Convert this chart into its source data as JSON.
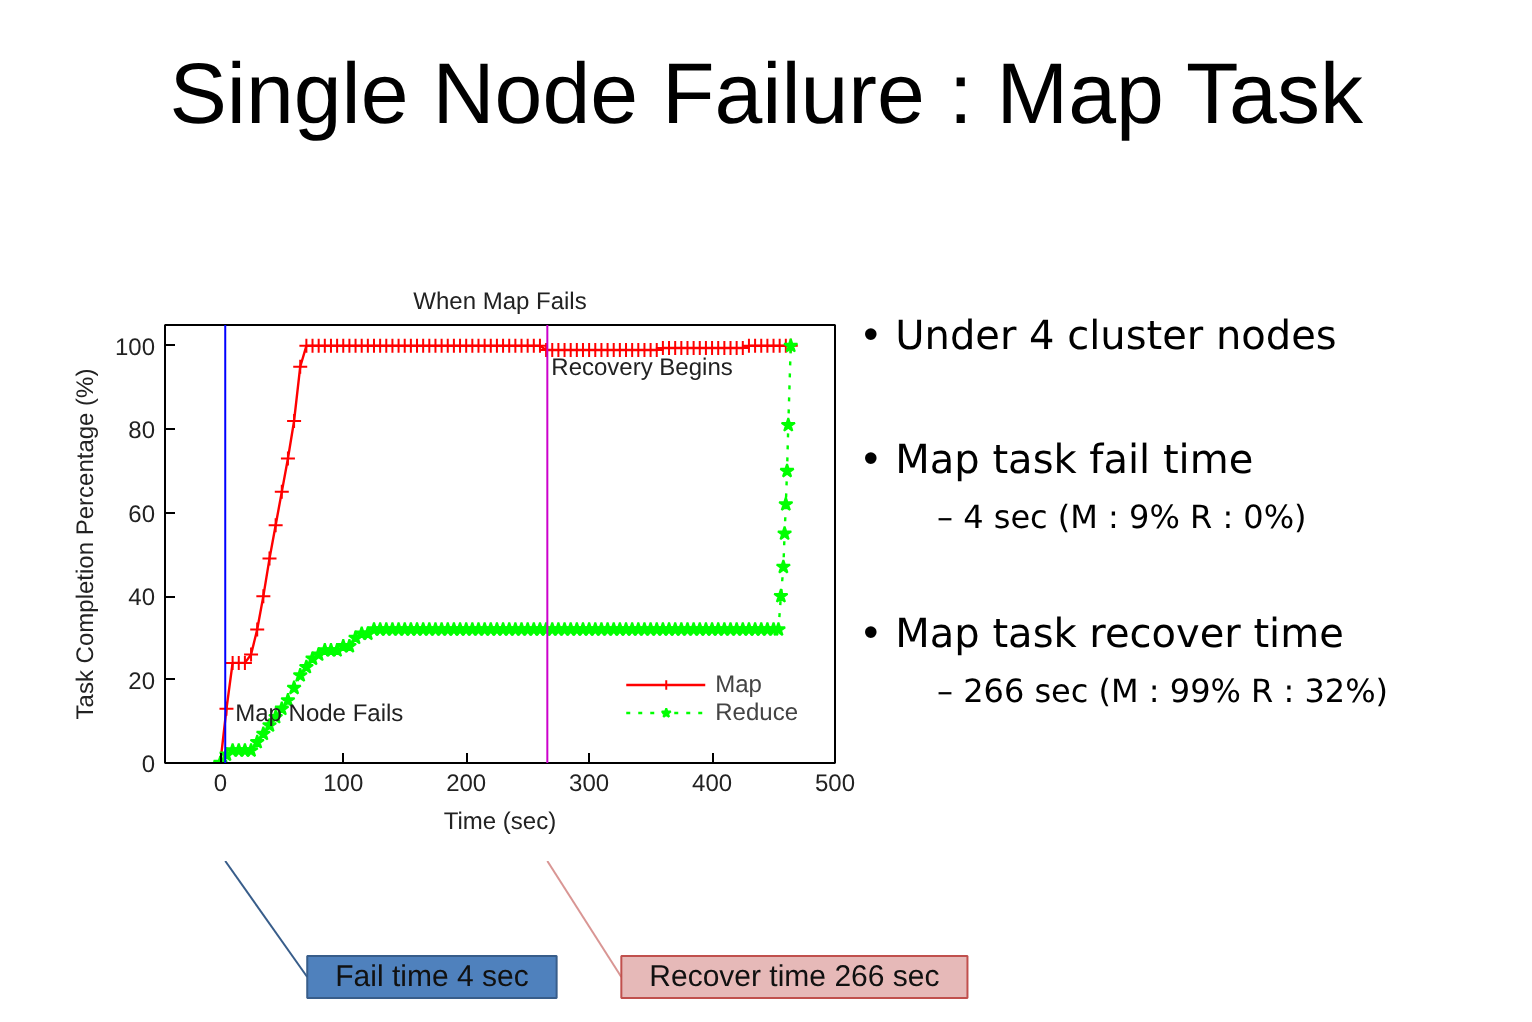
{
  "chart_data": {
    "type": "line",
    "title": "Single Node Failure : Map Task",
    "subtitle": "When Map Fails",
    "xlabel": "Time (sec)",
    "ylabel": "Task Completion Percentage (%)",
    "xlim": [
      -45,
      500
    ],
    "ylim": [
      0,
      105
    ],
    "xticks": [
      0,
      100,
      200,
      300,
      400,
      500
    ],
    "yticks": [
      0,
      20,
      40,
      60,
      80,
      100
    ],
    "legend": "bottom right",
    "series": [
      {
        "name": "Map",
        "color": "#ff0000",
        "marker": "cross",
        "line_style": "solid",
        "x": [
          0,
          5,
          10,
          15,
          20,
          25,
          30,
          35,
          40,
          45,
          50,
          55,
          60,
          65,
          70,
          75,
          80,
          85,
          90,
          95,
          100,
          105,
          110,
          115,
          120,
          125,
          130,
          135,
          140,
          145,
          150,
          155,
          160,
          165,
          170,
          175,
          180,
          185,
          190,
          195,
          200,
          205,
          210,
          215,
          220,
          225,
          230,
          235,
          240,
          245,
          250,
          255,
          260,
          265,
          270,
          275,
          280,
          285,
          290,
          295,
          300,
          305,
          310,
          315,
          320,
          325,
          330,
          335,
          340,
          345,
          350,
          355,
          360,
          365,
          370,
          375,
          380,
          385,
          390,
          395,
          400,
          405,
          410,
          415,
          420,
          425,
          430,
          435,
          440,
          445,
          450,
          455,
          460,
          464
        ],
        "values": [
          0,
          13,
          24,
          24,
          24,
          26,
          32,
          40,
          49,
          57,
          65,
          73,
          82,
          95,
          100,
          100,
          100,
          100,
          100,
          100,
          100,
          100,
          100,
          100,
          100,
          100,
          100,
          100,
          100,
          100,
          100,
          100,
          100,
          100,
          100,
          100,
          100,
          100,
          100,
          100,
          100,
          100,
          100,
          100,
          100,
          100,
          100,
          100,
          100,
          100,
          100,
          100,
          100,
          99,
          99,
          99,
          99,
          99,
          99,
          99,
          99,
          99,
          99,
          99,
          99,
          99,
          99,
          99,
          99,
          99,
          99,
          99,
          99.5,
          99.5,
          99.5,
          99.5,
          99.5,
          99.5,
          99.5,
          99.5,
          99.5,
          99.5,
          99.5,
          99.5,
          99.5,
          99.5,
          100,
          100,
          100,
          100,
          100,
          100,
          100,
          100
        ]
      },
      {
        "name": "Reduce",
        "color": "#00ff00",
        "marker": "star",
        "line_style": "dotted",
        "x": [
          0,
          5,
          10,
          15,
          20,
          25,
          30,
          35,
          40,
          45,
          50,
          55,
          60,
          65,
          70,
          75,
          80,
          85,
          90,
          95,
          100,
          105,
          110,
          115,
          120,
          125,
          130,
          135,
          140,
          145,
          150,
          155,
          160,
          165,
          170,
          175,
          180,
          185,
          190,
          195,
          200,
          205,
          210,
          215,
          220,
          225,
          230,
          235,
          240,
          245,
          250,
          255,
          260,
          265,
          270,
          275,
          280,
          285,
          290,
          295,
          300,
          305,
          310,
          315,
          320,
          325,
          330,
          335,
          340,
          345,
          350,
          355,
          360,
          365,
          370,
          375,
          380,
          385,
          390,
          395,
          400,
          405,
          410,
          415,
          420,
          425,
          430,
          435,
          440,
          445,
          450,
          454,
          456,
          458,
          459,
          460,
          461,
          462,
          464
        ],
        "values": [
          0,
          2,
          3,
          3,
          3,
          3,
          5,
          7,
          9,
          11,
          13,
          15,
          18,
          21,
          23,
          25,
          26,
          27,
          27,
          27,
          28,
          28,
          30,
          31,
          31,
          32,
          32,
          32,
          32,
          32,
          32,
          32,
          32,
          32,
          32,
          32,
          32,
          32,
          32,
          32,
          32,
          32,
          32,
          32,
          32,
          32,
          32,
          32,
          32,
          32,
          32,
          32,
          32,
          32,
          32,
          32,
          32,
          32,
          32,
          32,
          32,
          32,
          32,
          32,
          32,
          32,
          32,
          32,
          32,
          32,
          32,
          32,
          32,
          32,
          32,
          32,
          32,
          32,
          32,
          32,
          32,
          32,
          32,
          32,
          32,
          32,
          32,
          32,
          32,
          32,
          32,
          32,
          40,
          47,
          55,
          62,
          70,
          81,
          100
        ]
      }
    ],
    "ref_lines": [
      {
        "axis": "x",
        "value": 4,
        "label": "Map Node Fails",
        "color": "#0000ff"
      },
      {
        "axis": "x",
        "value": 266,
        "label": "Recovery Begins",
        "color": "#cc00cc"
      }
    ],
    "annotations": [
      "• Under 4 cluster nodes",
      "• Map task fail time",
      "– 4 sec (M : 9% R : 0%)",
      "• Map task recover time",
      "– 266 sec (M : 99% R : 32%)",
      "Fail time 4 sec",
      "Recover time 266 sec"
    ]
  }
}
